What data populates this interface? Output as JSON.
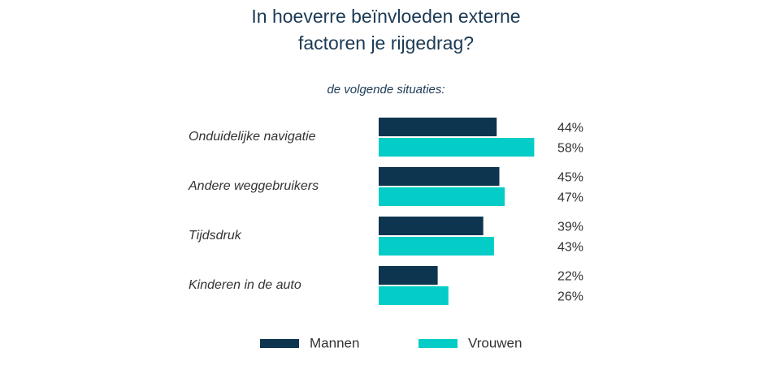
{
  "chart_data": {
    "type": "bar",
    "orientation": "horizontal",
    "title": "In hoeverre beïnvloeden externe factoren je rijgedrag?",
    "subtitle": "de volgende situaties:",
    "categories": [
      "Onduidelijke navigatie",
      "Andere weggebruikers",
      "Tijdsdruk",
      "Kinderen in de auto"
    ],
    "series": [
      {
        "name": "Mannen",
        "color": "#0d3550",
        "values": [
          44,
          45,
          39,
          22
        ],
        "value_labels": [
          "44%",
          "45%",
          "39%",
          "22%"
        ]
      },
      {
        "name": "Vrouwen",
        "color": "#03cdc6",
        "values": [
          58,
          47,
          43,
          26
        ],
        "value_labels": [
          "58%",
          "47%",
          "43%",
          "26%"
        ]
      }
    ],
    "legend": "bottom"
  }
}
